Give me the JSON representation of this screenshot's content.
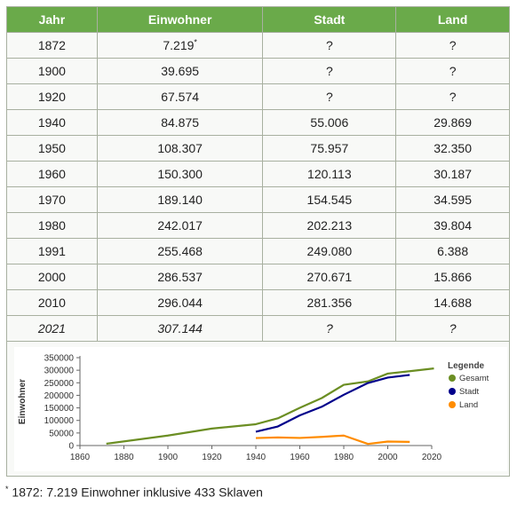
{
  "table": {
    "headers": [
      "Jahr",
      "Einwohner",
      "Stadt",
      "Land"
    ],
    "rows": [
      {
        "jahr": "1872",
        "einwohner": "7.219",
        "mark": "*",
        "stadt": "?",
        "land": "?"
      },
      {
        "jahr": "1900",
        "einwohner": "39.695",
        "stadt": "?",
        "land": "?"
      },
      {
        "jahr": "1920",
        "einwohner": "67.574",
        "stadt": "?",
        "land": "?"
      },
      {
        "jahr": "1940",
        "einwohner": "84.875",
        "stadt": "55.006",
        "land": "29.869"
      },
      {
        "jahr": "1950",
        "einwohner": "108.307",
        "stadt": "75.957",
        "land": "32.350"
      },
      {
        "jahr": "1960",
        "einwohner": "150.300",
        "stadt": "120.113",
        "land": "30.187"
      },
      {
        "jahr": "1970",
        "einwohner": "189.140",
        "stadt": "154.545",
        "land": "34.595"
      },
      {
        "jahr": "1980",
        "einwohner": "242.017",
        "stadt": "202.213",
        "land": "39.804"
      },
      {
        "jahr": "1991",
        "einwohner": "255.468",
        "stadt": "249.080",
        "land": "6.388"
      },
      {
        "jahr": "2000",
        "einwohner": "286.537",
        "stadt": "270.671",
        "land": "15.866"
      },
      {
        "jahr": "2010",
        "einwohner": "296.044",
        "stadt": "281.356",
        "land": "14.688"
      },
      {
        "jahr": "2021",
        "einwohner": "307.144",
        "stadt": "?",
        "land": "?",
        "italic": true
      }
    ]
  },
  "chart_data": {
    "type": "line",
    "title": "",
    "xlabel": "",
    "ylabel": "Einwohner",
    "xlim": [
      1860,
      2020
    ],
    "ylim": [
      0,
      350000
    ],
    "xticks": [
      1860,
      1880,
      1900,
      1920,
      1940,
      1960,
      1980,
      2000,
      2020
    ],
    "yticks": [
      0,
      50000,
      100000,
      150000,
      200000,
      250000,
      300000,
      350000
    ],
    "grid": false,
    "legend": {
      "title": "Legende",
      "placement": "right"
    },
    "series": [
      {
        "name": "Gesamt",
        "color": "#6b8e23",
        "x": [
          1872,
          1900,
          1920,
          1940,
          1950,
          1960,
          1970,
          1980,
          1991,
          2000,
          2010,
          2021
        ],
        "y": [
          7219,
          39695,
          67574,
          84875,
          108307,
          150300,
          189140,
          242017,
          255468,
          286537,
          296044,
          307144
        ]
      },
      {
        "name": "Stadt",
        "color": "#00008b",
        "x": [
          1940,
          1950,
          1960,
          1970,
          1980,
          1991,
          2000,
          2010
        ],
        "y": [
          55006,
          75957,
          120113,
          154545,
          202213,
          249080,
          270671,
          281356
        ]
      },
      {
        "name": "Land",
        "color": "#ff8c00",
        "x": [
          1940,
          1950,
          1960,
          1970,
          1980,
          1991,
          2000,
          2010
        ],
        "y": [
          29869,
          32350,
          30187,
          34595,
          39804,
          6388,
          15866,
          14688
        ]
      }
    ]
  },
  "footnote": {
    "mark": "*",
    "text": "1872: 7.219 Einwohner inklusive 433 Sklaven"
  }
}
